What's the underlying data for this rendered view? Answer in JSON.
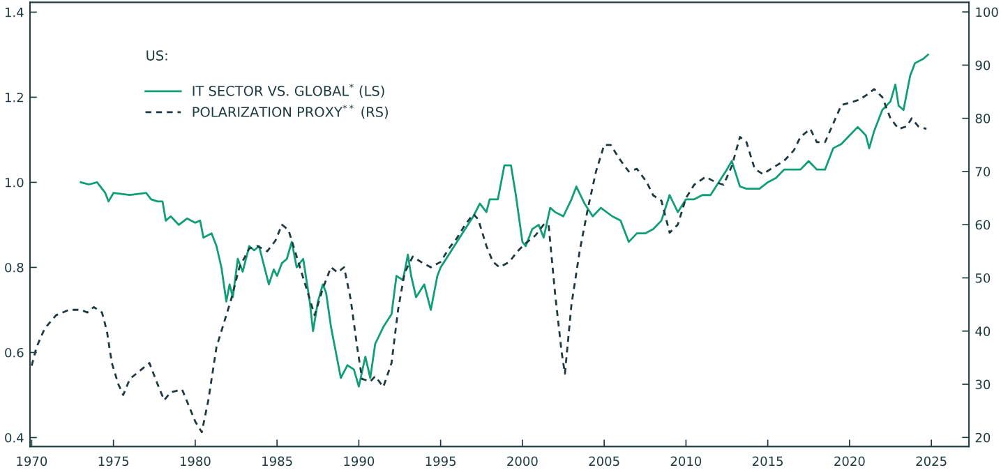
{
  "chart_data": {
    "type": "line",
    "legend_title": "US:",
    "legend": "top left",
    "grid": false,
    "tick_labels": true,
    "xlim": [
      1969.9,
      2027.3
    ],
    "xticks": [
      1970,
      1975,
      1980,
      1985,
      1990,
      1995,
      2000,
      2005,
      2010,
      2015,
      2020,
      2025
    ],
    "ylim": [
      0.379,
      1.423
    ],
    "yticks": [
      {
        "value": 0.4,
        "label": "0.4"
      },
      {
        "value": 0.6,
        "label": "0.6"
      },
      {
        "value": 0.8,
        "label": "0.8"
      },
      {
        "value": 1.0,
        "label": "1.0"
      },
      {
        "value": 1.2,
        "label": "1.2"
      },
      {
        "value": 1.4,
        "label": "1.4"
      }
    ],
    "y2lim": [
      18.3,
      101.8
    ],
    "y2ticks": [
      20,
      30,
      40,
      50,
      60,
      70,
      80,
      90,
      100
    ],
    "series": [
      {
        "name": "IT SECTOR VS. GLOBAL$^{*}$ (LS)",
        "color": "#0f9e78",
        "line_style": "solid",
        "axis": "y",
        "x": [
          1973.0,
          1973.5,
          1974.0,
          1974.5,
          1974.7,
          1975.0,
          1976.0,
          1977.0,
          1977.3,
          1977.7,
          1978.0,
          1978.2,
          1978.5,
          1979.0,
          1979.5,
          1980.0,
          1980.3,
          1980.5,
          1981.0,
          1981.3,
          1981.6,
          1981.9,
          1982.1,
          1982.3,
          1982.6,
          1982.9,
          1983.3,
          1983.6,
          1983.9,
          1984.1,
          1984.5,
          1984.8,
          1985.0,
          1985.3,
          1985.6,
          1985.9,
          1986.2,
          1986.6,
          1987.0,
          1987.2,
          1987.5,
          1987.8,
          1988.0,
          1988.3,
          1988.6,
          1988.9,
          1989.3,
          1989.7,
          1990.0,
          1990.4,
          1990.7,
          1991.0,
          1991.5,
          1992.0,
          1992.3,
          1992.7,
          1993.0,
          1993.2,
          1993.5,
          1994.0,
          1994.4,
          1994.8,
          1995.0,
          1995.5,
          1996.0,
          1996.5,
          1997.0,
          1997.4,
          1997.8,
          1998.0,
          1998.5,
          1998.9,
          1999.3,
          1999.6,
          2000.0,
          2000.2,
          2000.6,
          2001.0,
          2001.3,
          2001.7,
          2002.0,
          2002.5,
          2003.0,
          2003.3,
          2003.8,
          2004.3,
          2004.8,
          2005.5,
          2006.0,
          2006.5,
          2007.0,
          2007.5,
          2008.0,
          2008.5,
          2009.0,
          2009.5,
          2010.0,
          2010.5,
          2011.0,
          2011.5,
          2012.0,
          2012.5,
          2012.8,
          2013.3,
          2013.7,
          2014.5,
          2015.0,
          2015.5,
          2016.0,
          2017.0,
          2017.5,
          2018.0,
          2018.5,
          2019.0,
          2019.5,
          2020.0,
          2020.5,
          2021.0,
          2021.2,
          2021.5,
          2022.0,
          2022.5,
          2022.8,
          2023.0,
          2023.3,
          2023.7,
          2024.0,
          2024.5,
          2024.8
        ],
        "values": [
          1.0,
          0.995,
          1.0,
          0.975,
          0.955,
          0.975,
          0.97,
          0.975,
          0.96,
          0.955,
          0.955,
          0.91,
          0.92,
          0.9,
          0.915,
          0.905,
          0.91,
          0.87,
          0.88,
          0.85,
          0.8,
          0.72,
          0.76,
          0.73,
          0.82,
          0.79,
          0.85,
          0.84,
          0.85,
          0.82,
          0.76,
          0.795,
          0.78,
          0.81,
          0.82,
          0.86,
          0.8,
          0.82,
          0.72,
          0.65,
          0.72,
          0.76,
          0.74,
          0.66,
          0.6,
          0.54,
          0.57,
          0.56,
          0.52,
          0.59,
          0.54,
          0.62,
          0.66,
          0.69,
          0.78,
          0.77,
          0.83,
          0.78,
          0.73,
          0.76,
          0.7,
          0.78,
          0.8,
          0.83,
          0.86,
          0.89,
          0.92,
          0.95,
          0.93,
          0.96,
          0.96,
          1.04,
          1.04,
          0.97,
          0.86,
          0.85,
          0.89,
          0.9,
          0.87,
          0.94,
          0.93,
          0.92,
          0.96,
          0.99,
          0.95,
          0.92,
          0.94,
          0.92,
          0.91,
          0.86,
          0.88,
          0.88,
          0.89,
          0.91,
          0.97,
          0.93,
          0.96,
          0.96,
          0.97,
          0.97,
          1.0,
          1.03,
          1.05,
          0.99,
          0.985,
          0.985,
          1.0,
          1.01,
          1.03,
          1.03,
          1.05,
          1.03,
          1.03,
          1.08,
          1.09,
          1.11,
          1.13,
          1.11,
          1.08,
          1.12,
          1.17,
          1.19,
          1.23,
          1.18,
          1.17,
          1.25,
          1.28,
          1.29,
          1.3
        ]
      },
      {
        "name": "POLARIZATION PROXY$^{**}$ (RS)",
        "color": "#1d3a40",
        "line_style": "dashed",
        "axis": "y2",
        "x": [
          1970.0,
          1970.3,
          1970.8,
          1971.5,
          1972.3,
          1973.0,
          1973.4,
          1973.8,
          1974.3,
          1974.6,
          1974.9,
          1975.3,
          1975.6,
          1976.0,
          1976.6,
          1977.2,
          1977.7,
          1978.1,
          1978.5,
          1979.2,
          1979.6,
          1980.0,
          1980.4,
          1980.8,
          1981.3,
          1981.7,
          1982.2,
          1982.7,
          1983.3,
          1983.8,
          1984.4,
          1984.9,
          1985.3,
          1985.7,
          1986.1,
          1986.6,
          1987.0,
          1987.3,
          1987.8,
          1988.3,
          1988.7,
          1989.1,
          1989.5,
          1989.9,
          1990.2,
          1990.7,
          1991.0,
          1991.5,
          1992.0,
          1992.4,
          1992.8,
          1993.3,
          1993.8,
          1994.4,
          1995.0,
          1995.5,
          1996.0,
          1996.5,
          1997.0,
          1997.3,
          1997.8,
          1998.2,
          1998.6,
          1999.2,
          1999.7,
          2000.2,
          2000.8,
          2001.3,
          2001.6,
          2002.0,
          2002.4,
          2002.6,
          2003.0,
          2003.5,
          2004.0,
          2004.5,
          2005.0,
          2005.4,
          2005.9,
          2006.5,
          2007.0,
          2007.6,
          2008.0,
          2008.5,
          2009.0,
          2009.5,
          2010.0,
          2010.5,
          2011.2,
          2011.8,
          2012.3,
          2012.8,
          2013.3,
          2013.7,
          2014.2,
          2014.7,
          2015.2,
          2016.0,
          2016.6,
          2017.0,
          2017.6,
          2018.0,
          2018.5,
          2019.0,
          2019.5,
          2020.1,
          2020.6,
          2021.1,
          2021.5,
          2022.0,
          2022.5,
          2023.0,
          2023.5,
          2023.8,
          2024.2,
          2024.7
        ],
        "values": [
          33.5,
          37,
          40.5,
          43,
          44,
          44,
          43.5,
          44.5,
          43.5,
          40,
          34,
          30,
          28,
          31,
          32.5,
          34,
          30,
          27,
          28.5,
          29,
          26,
          23,
          21,
          27,
          37,
          41,
          46,
          52,
          55.5,
          56,
          55,
          57,
          60,
          59,
          55,
          50,
          46,
          43,
          48,
          52,
          51,
          52,
          46,
          37,
          31,
          30.5,
          31.5,
          29.5,
          34,
          44,
          51,
          54,
          53,
          52,
          53,
          55.5,
          57.5,
          60,
          62,
          61,
          56,
          53,
          52,
          53,
          55,
          56.5,
          58,
          60,
          60,
          47,
          36,
          32,
          45,
          55,
          63,
          70,
          75,
          75,
          72.5,
          70,
          70.5,
          68,
          65.5,
          64.5,
          58.5,
          60,
          65,
          67.5,
          69,
          68,
          67.5,
          71,
          76.5,
          75.5,
          70.5,
          69.5,
          70.5,
          72,
          74,
          76.5,
          78,
          75.5,
          75.5,
          79,
          82.5,
          83,
          83.5,
          84.5,
          85.5,
          84,
          80,
          78,
          78.5,
          80,
          78.5,
          78
        ]
      }
    ]
  }
}
